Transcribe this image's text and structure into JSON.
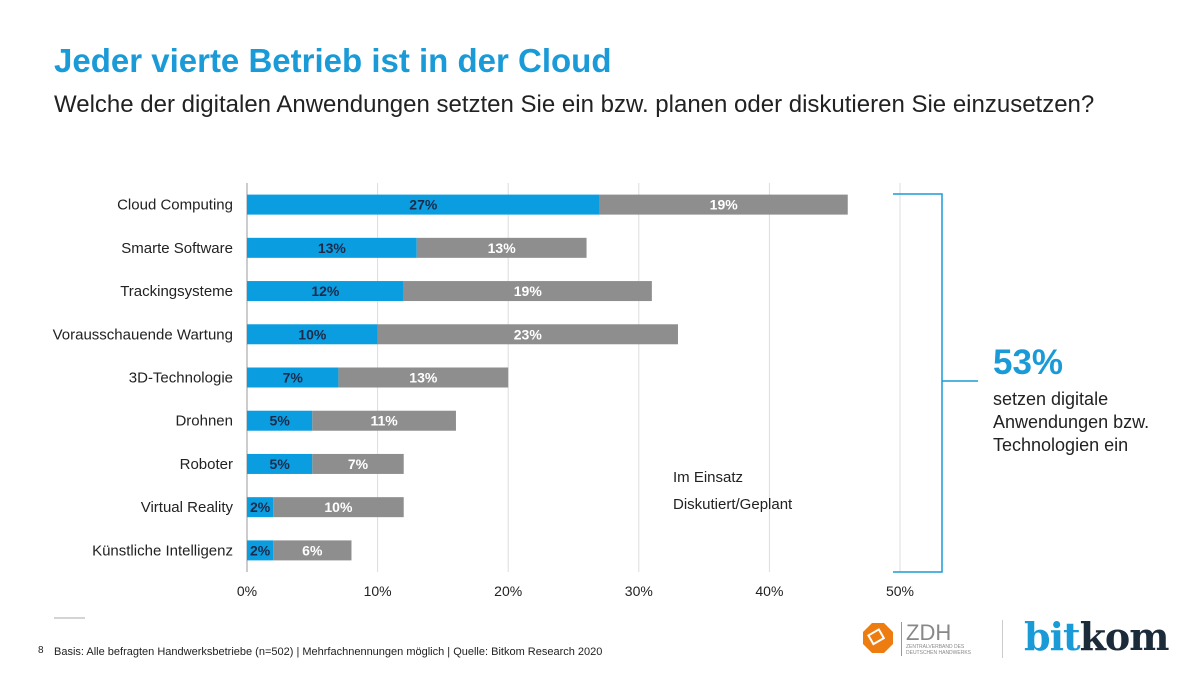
{
  "title": "Jeder vierte Betrieb ist in der Cloud",
  "subtitle": "Welche der digitalen Anwendungen setzten Sie ein bzw. planen oder diskutieren Sie einzusetzen?",
  "chart_data": {
    "type": "bar",
    "orientation": "horizontal",
    "stacked": true,
    "categories": [
      "Cloud Computing",
      "Smarte Software",
      "Trackingsysteme",
      "Vorausschauende Wartung",
      "3D-Technologie",
      "Drohnen",
      "Roboter",
      "Virtual Reality",
      "Künstliche Intelligenz"
    ],
    "series": [
      {
        "name": "Im Einsatz",
        "color": "#0a9de0",
        "values": [
          27,
          13,
          12,
          10,
          7,
          5,
          5,
          2,
          2
        ]
      },
      {
        "name": "Diskutiert/Geplant",
        "color": "#8e8e8e",
        "values": [
          19,
          13,
          19,
          23,
          13,
          11,
          7,
          10,
          6
        ]
      }
    ],
    "xlim": [
      0,
      50
    ],
    "xticks": [
      "0%",
      "10%",
      "20%",
      "30%",
      "40%",
      "50%"
    ],
    "grid": true,
    "legend": "bottom-right"
  },
  "callout": {
    "value": "53%",
    "text": "setzen digitale Anwendungen bzw. Technologien ein"
  },
  "footer": {
    "page": "8",
    "text": "Basis: Alle befragten Handwerksbetriebe (n=502) | Mehrfachnennungen möglich | Quelle: Bitkom Research 2020"
  },
  "logos": {
    "zdh": "ZDH",
    "zdh_sub": "ZENTRALVERBAND DES DEUTSCHEN HANDWERKS",
    "bitkom_a": "bit",
    "bitkom_b": "kom"
  }
}
